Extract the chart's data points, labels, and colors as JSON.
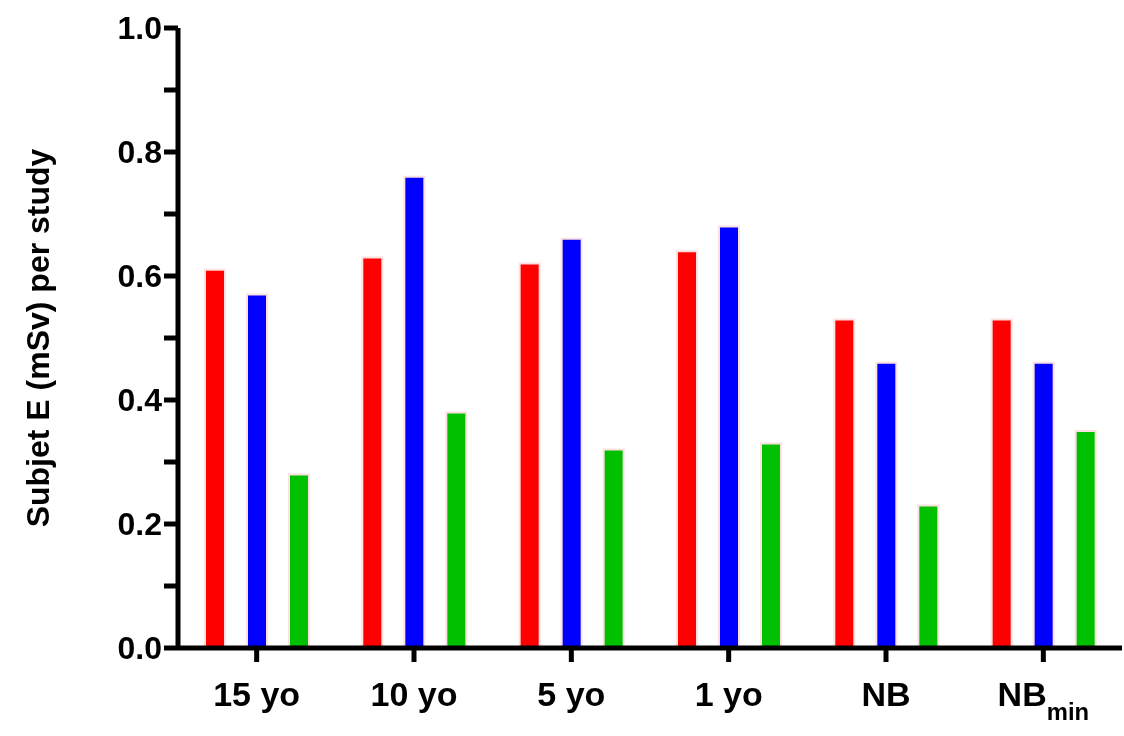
{
  "chart_data": {
    "type": "bar",
    "ylabel": "Subjet E (mSv) per study",
    "categories": [
      "15 yo",
      "10 yo",
      "5 yo",
      "1 yo",
      "NB",
      "NB$_{min}$"
    ],
    "series": [
      {
        "color": "#ff0000",
        "values": [
          0.61,
          0.63,
          0.62,
          0.64,
          0.53,
          0.53
        ]
      },
      {
        "color": "#0000ff",
        "values": [
          0.57,
          0.76,
          0.66,
          0.68,
          0.46,
          0.46
        ]
      },
      {
        "color": "#00c000",
        "values": [
          0.28,
          0.38,
          0.32,
          0.33,
          0.23,
          0.35
        ]
      }
    ],
    "ylim": [
      0,
      1
    ],
    "yticks": [
      {
        "value": 0,
        "label": "0.0"
      },
      {
        "value": 0.1,
        "label": null
      },
      {
        "value": 0.2,
        "label": "0.2"
      },
      {
        "value": 0.3,
        "label": null
      },
      {
        "value": 0.4,
        "label": "0.4"
      },
      {
        "value": 0.5,
        "label": null
      },
      {
        "value": 0.6,
        "label": "0.6"
      },
      {
        "value": 0.7,
        "label": null
      },
      {
        "value": 0.8,
        "label": "0.8"
      },
      {
        "value": 0.9,
        "label": null
      },
      {
        "value": 1,
        "label": "1.0"
      }
    ],
    "grid": false,
    "legend": false
  }
}
